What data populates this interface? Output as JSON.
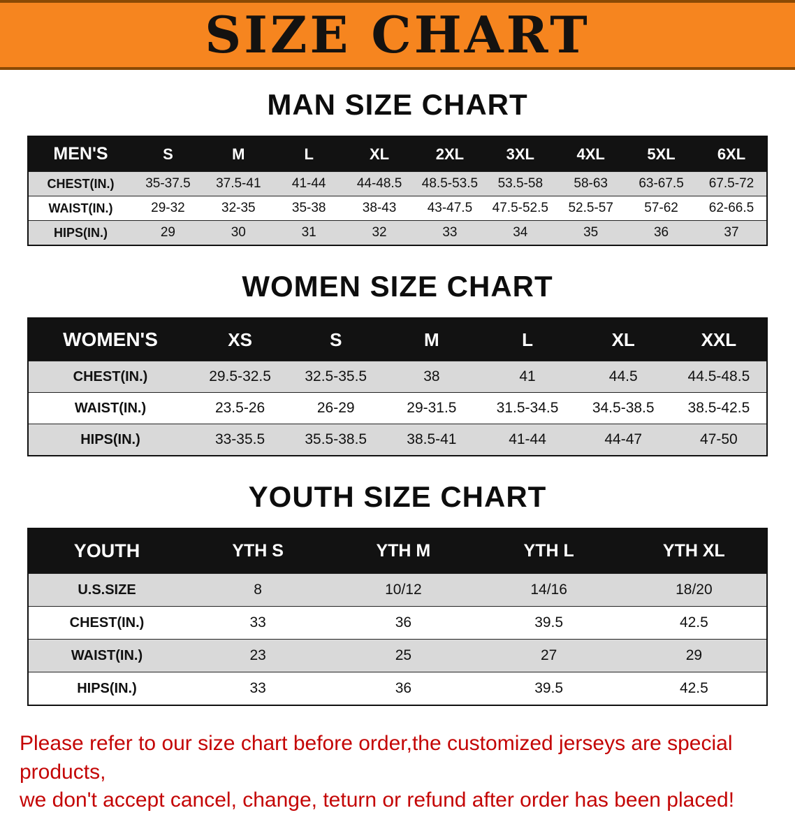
{
  "banner": {
    "title": "SIZE CHART"
  },
  "colors": {
    "banner_orange": "#f6851f",
    "banner_border": "#8a4a05",
    "header_black": "#121212",
    "row_gray": "#d9d9d9",
    "disclaimer_red": "#c40505"
  },
  "sections": [
    {
      "id": "men",
      "heading": "MAN SIZE CHART",
      "table": {
        "header": [
          "MEN'S",
          "S",
          "M",
          "L",
          "XL",
          "2XL",
          "3XL",
          "4XL",
          "5XL",
          "6XL"
        ],
        "rows": [
          [
            "CHEST(IN.)",
            "35-37.5",
            "37.5-41",
            "41-44",
            "44-48.5",
            "48.5-53.5",
            "53.5-58",
            "58-63",
            "63-67.5",
            "67.5-72"
          ],
          [
            "WAIST(IN.)",
            "29-32",
            "32-35",
            "35-38",
            "38-43",
            "43-47.5",
            "47.5-52.5",
            "52.5-57",
            "57-62",
            "62-66.5"
          ],
          [
            "HIPS(IN.)",
            "29",
            "30",
            "31",
            "32",
            "33",
            "34",
            "35",
            "36",
            "37"
          ]
        ]
      }
    },
    {
      "id": "women",
      "heading": "WOMEN SIZE CHART",
      "table": {
        "header": [
          "WOMEN'S",
          "XS",
          "S",
          "M",
          "L",
          "XL",
          "XXL"
        ],
        "rows": [
          [
            "CHEST(IN.)",
            "29.5-32.5",
            "32.5-35.5",
            "38",
            "41",
            "44.5",
            "44.5-48.5"
          ],
          [
            "WAIST(IN.)",
            "23.5-26",
            "26-29",
            "29-31.5",
            "31.5-34.5",
            "34.5-38.5",
            "38.5-42.5"
          ],
          [
            "HIPS(IN.)",
            "33-35.5",
            "35.5-38.5",
            "38.5-41",
            "41-44",
            "44-47",
            "47-50"
          ]
        ]
      }
    },
    {
      "id": "youth",
      "heading": "YOUTH SIZE CHART",
      "table": {
        "header": [
          "YOUTH",
          "YTH S",
          "YTH M",
          "YTH L",
          "YTH XL"
        ],
        "rows": [
          [
            "U.S.SIZE",
            "8",
            "10/12",
            "14/16",
            "18/20"
          ],
          [
            "CHEST(IN.)",
            "33",
            "36",
            "39.5",
            "42.5"
          ],
          [
            "WAIST(IN.)",
            "23",
            "25",
            "27",
            "29"
          ],
          [
            "HIPS(IN.)",
            "33",
            "36",
            "39.5",
            "42.5"
          ]
        ]
      }
    }
  ],
  "disclaimer": {
    "line1": "Please refer to our size chart before order,the customized jerseys are special products,",
    "line2": "we don't accept cancel, change, teturn or refund after order has been placed!"
  }
}
